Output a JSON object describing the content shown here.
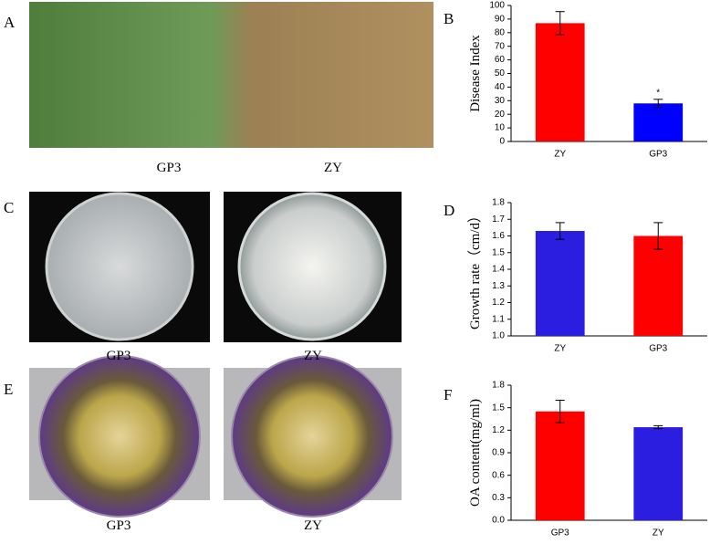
{
  "panel_labels": [
    "A",
    "B",
    "C",
    "D",
    "E",
    "F"
  ],
  "photo_captions": {
    "A": [
      "GP3",
      "ZY"
    ],
    "C": [
      "GP3",
      "ZY"
    ],
    "E": [
      "GP3",
      "ZY"
    ]
  },
  "chart_data": [
    {
      "type": "bar",
      "y_label": "Disease Index",
      "categories": [
        "ZY",
        "GP3"
      ],
      "values": [
        87,
        28
      ],
      "errors": [
        8.5,
        3
      ],
      "colors": [
        "#ff0000",
        "#0000ff"
      ],
      "annotation": "*",
      "ylim": [
        0,
        100
      ],
      "yticks": [
        0,
        10,
        20,
        30,
        40,
        50,
        60,
        70,
        80,
        90,
        100
      ]
    },
    {
      "type": "bar",
      "y_label": "Growth rate（cm/d）",
      "categories": [
        "ZY",
        "GP3"
      ],
      "values": [
        1.63,
        1.6
      ],
      "errors": [
        0.05,
        0.08
      ],
      "colors": [
        "#2b1ee0",
        "#ff0000"
      ],
      "ylim": [
        1,
        1.8
      ],
      "yticks": [
        {
          "value": 1,
          "label": "1.0"
        },
        1.1,
        1.2,
        1.3,
        1.4,
        1.5,
        1.6,
        1.7,
        1.8
      ]
    },
    {
      "type": "bar",
      "y_label": "OA content(mg/ml)",
      "categories": [
        "GP3",
        "ZY"
      ],
      "values": [
        1.45,
        1.24
      ],
      "errors": [
        0.15,
        0.02
      ],
      "colors": [
        "#ff0000",
        "#2b1ee0"
      ],
      "ylim": [
        0,
        1.8
      ],
      "yticks": [
        {
          "value": 0,
          "label": "0.0"
        },
        0.3,
        0.6,
        0.9,
        1.2,
        1.5,
        1.8
      ]
    }
  ]
}
